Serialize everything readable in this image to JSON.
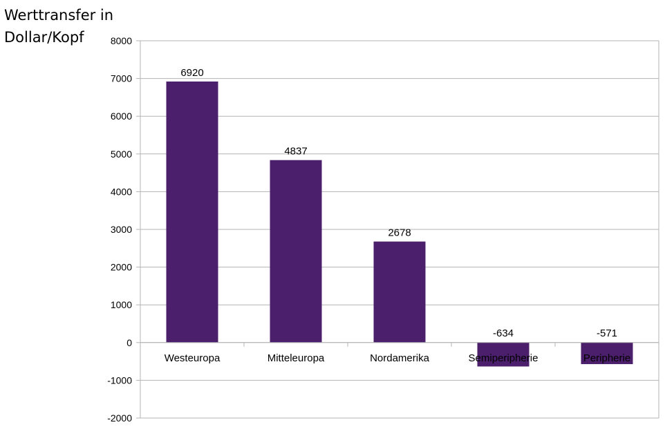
{
  "chart_data": {
    "type": "bar",
    "title": "",
    "ylabel_lines": [
      "Werttransfer in",
      "Dollar/Kopf"
    ],
    "xlabel": "",
    "categories": [
      "Westeuropa",
      "Mitteleuropa",
      "Nordamerika",
      "Semiperipherie",
      "Peripherie"
    ],
    "values": [
      6920,
      4837,
      2678,
      -634,
      -571
    ],
    "data_labels": [
      "6920",
      "4837",
      "2678",
      "-634",
      "-571"
    ],
    "ylim": [
      -2000,
      8000
    ],
    "yticks": [
      -2000,
      -1000,
      0,
      1000,
      2000,
      3000,
      4000,
      5000,
      6000,
      7000,
      8000
    ],
    "grid": true,
    "legend": "none",
    "bar_color": "#4b1f6b"
  }
}
